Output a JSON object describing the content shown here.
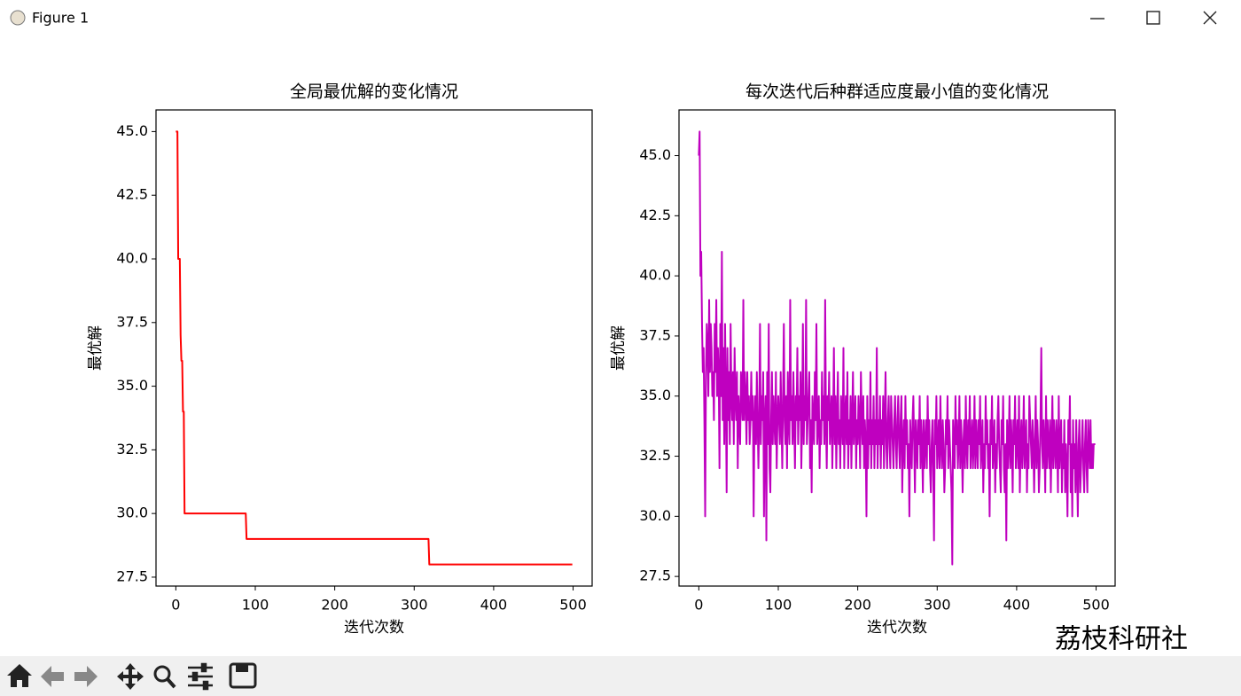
{
  "window": {
    "title": "Figure 1"
  },
  "watermark": "荔枝科研社",
  "chart_data": [
    {
      "type": "line",
      "title": "全局最优解的变化情况",
      "x_label": "迭代次数",
      "y_label": "最优解",
      "color": "#ff0000",
      "x": [
        0,
        2,
        3,
        5,
        6,
        7,
        8,
        9,
        10,
        11,
        88,
        89,
        318,
        319,
        499
      ],
      "values": [
        45,
        45,
        40,
        40,
        37,
        36,
        36,
        34,
        34,
        30,
        30,
        29,
        29,
        28,
        28
      ],
      "xlim": [
        -24.95,
        523.95
      ],
      "xticks": [
        0,
        100,
        200,
        300,
        400,
        500
      ],
      "ylim": [
        27.15,
        45.85
      ],
      "yticks": [
        27.5,
        {
          "value": 30,
          "label": "30.0"
        },
        32.5,
        {
          "value": 35,
          "label": "35.0"
        },
        37.5,
        {
          "value": 40,
          "label": "40.0"
        },
        42.5,
        {
          "value": 45,
          "label": "45.0"
        }
      ]
    },
    {
      "type": "line",
      "title": "每次迭代后种群适应度最小值的变化情况",
      "x_label": "迭代次数",
      "y_label": "最优解",
      "color": "#bf00bf",
      "values": [
        45,
        46,
        40,
        41,
        38,
        36,
        37,
        34,
        30,
        36,
        38,
        37,
        35,
        39,
        36,
        38,
        37,
        35,
        36,
        34,
        38,
        36,
        39,
        35,
        37,
        36,
        32,
        38,
        35,
        41,
        34,
        37,
        33,
        38,
        35,
        31,
        37,
        34,
        36,
        33,
        38,
        35,
        34,
        36,
        33,
        37,
        35,
        34,
        36,
        32,
        35,
        34,
        33,
        36,
        35,
        34,
        39,
        34,
        36,
        35,
        33,
        36,
        34,
        35,
        33,
        34,
        36,
        34,
        35,
        30,
        34,
        35,
        33,
        36,
        34,
        32,
        34,
        38,
        33,
        35,
        34,
        36,
        30,
        34,
        35,
        29,
        36,
        33,
        38,
        32,
        31,
        34,
        36,
        33,
        35,
        34,
        33,
        36,
        32,
        34,
        35,
        34,
        33,
        36,
        34,
        32,
        35,
        38,
        34,
        33,
        35,
        32,
        36,
        34,
        33,
        39,
        34,
        35,
        33,
        36,
        34,
        32,
        35,
        34,
        37,
        33,
        35,
        34,
        36,
        32,
        34,
        38,
        33,
        35,
        34,
        39,
        33,
        34,
        35,
        36,
        32,
        34,
        31,
        35,
        34,
        33,
        36,
        34,
        38,
        33,
        34,
        35,
        32,
        34,
        33,
        36,
        34,
        35,
        33,
        39,
        34,
        32,
        35,
        34,
        36,
        33,
        34,
        35,
        32,
        34,
        37,
        33,
        35,
        32,
        34,
        36,
        33,
        34,
        32,
        35,
        34,
        33,
        37,
        32,
        34,
        35,
        33,
        36,
        32,
        34,
        33,
        35,
        32,
        34,
        36,
        33,
        34,
        35,
        32,
        34,
        33,
        35,
        34,
        32,
        36,
        34,
        33,
        35,
        32,
        34,
        33,
        30,
        35,
        32,
        34,
        33,
        36,
        32,
        34,
        33,
        35,
        32,
        34,
        33,
        37,
        32,
        34,
        33,
        35,
        32,
        34,
        33,
        35,
        32,
        34,
        36,
        33,
        32,
        34,
        35,
        33,
        32,
        35,
        34,
        33,
        32,
        34,
        35,
        33,
        32,
        34,
        35,
        33,
        32,
        34,
        35,
        31,
        33,
        34,
        32,
        35,
        33,
        34,
        32,
        33,
        30,
        34,
        33,
        32,
        34,
        35,
        33,
        31,
        34,
        33,
        32,
        34,
        33,
        35,
        32,
        34,
        33,
        31,
        34,
        32,
        33,
        34,
        32,
        35,
        33,
        34,
        32,
        31,
        33,
        34,
        32,
        29,
        34,
        33,
        35,
        32,
        33,
        34,
        32,
        35,
        33,
        32,
        34,
        33,
        31,
        32,
        34,
        33,
        35,
        32,
        34,
        33,
        32,
        31,
        28,
        34,
        33,
        32,
        35,
        33,
        34,
        32,
        33,
        35,
        32,
        34,
        33,
        31,
        33,
        34,
        32,
        35,
        33,
        32,
        34,
        33,
        35,
        32,
        33,
        34,
        32,
        33,
        35,
        32,
        34,
        33,
        32,
        34,
        33,
        35,
        32,
        33,
        34,
        31,
        33,
        32,
        35,
        33,
        34,
        32,
        33,
        30,
        34,
        33,
        35,
        32,
        33,
        34,
        31,
        33,
        32,
        34,
        35,
        33,
        32,
        31,
        34,
        33,
        35,
        32,
        31,
        33,
        29,
        34,
        32,
        33,
        35,
        32,
        34,
        33,
        31,
        34,
        33,
        35,
        32,
        33,
        34,
        32,
        35,
        31,
        33,
        34,
        32,
        33,
        35,
        32,
        33,
        34,
        31,
        33,
        32,
        35,
        34,
        33,
        32,
        34,
        33,
        31,
        33,
        35,
        32,
        34,
        33,
        31,
        32,
        34,
        37,
        33,
        32,
        34,
        33,
        31,
        35,
        32,
        34,
        33,
        32,
        34,
        31,
        33,
        35,
        32,
        34,
        33,
        32,
        34,
        33,
        31,
        35,
        32,
        33,
        34,
        31,
        33,
        32,
        34,
        31,
        33,
        32,
        30,
        34,
        33,
        35,
        31,
        33,
        30,
        34,
        32,
        33,
        31,
        34,
        32,
        30,
        33,
        34,
        31,
        32,
        33,
        34,
        32,
        31,
        33,
        34,
        32,
        31,
        34,
        33,
        32,
        34,
        32,
        33,
        32,
        33,
        33,
        33
      ],
      "xlim": [
        -24.95,
        523.95
      ],
      "xticks": [
        0,
        100,
        200,
        300,
        400,
        500
      ],
      "ylim": [
        27.1,
        46.9
      ],
      "yticks": [
        27.5,
        {
          "value": 30,
          "label": "30.0"
        },
        32.5,
        {
          "value": 35,
          "label": "35.0"
        },
        37.5,
        {
          "value": 40,
          "label": "40.0"
        },
        42.5,
        {
          "value": 45,
          "label": "45.0"
        }
      ]
    }
  ]
}
